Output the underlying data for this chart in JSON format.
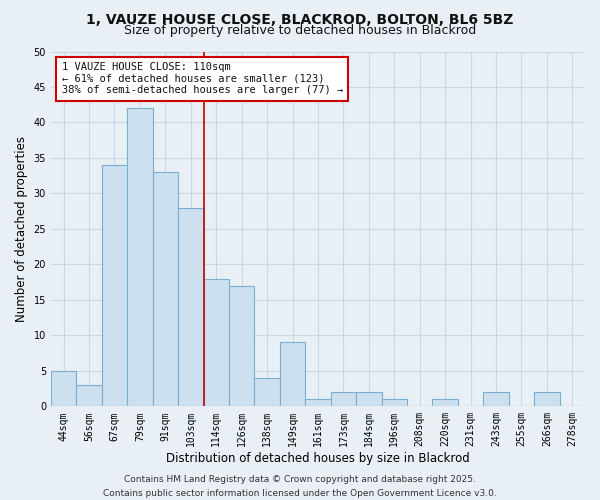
{
  "title_line1": "1, VAUZE HOUSE CLOSE, BLACKROD, BOLTON, BL6 5BZ",
  "title_line2": "Size of property relative to detached houses in Blackrod",
  "xlabel": "Distribution of detached houses by size in Blackrod",
  "ylabel": "Number of detached properties",
  "bar_labels": [
    "44sqm",
    "56sqm",
    "67sqm",
    "79sqm",
    "91sqm",
    "103sqm",
    "114sqm",
    "126sqm",
    "138sqm",
    "149sqm",
    "161sqm",
    "173sqm",
    "184sqm",
    "196sqm",
    "208sqm",
    "220sqm",
    "231sqm",
    "243sqm",
    "255sqm",
    "266sqm",
    "278sqm"
  ],
  "bar_values": [
    5,
    3,
    34,
    42,
    33,
    28,
    18,
    17,
    4,
    9,
    1,
    2,
    2,
    1,
    0,
    1,
    0,
    2,
    0,
    2,
    0
  ],
  "bar_fill": "#cce0f0",
  "bar_edge": "#7aafd4",
  "red_line_after_index": 5,
  "annotation_title": "1 VAUZE HOUSE CLOSE: 110sqm",
  "annotation_line1": "← 61% of detached houses are smaller (123)",
  "annotation_line2": "38% of semi-detached houses are larger (77) →",
  "annotation_box_color": "#ffffff",
  "annotation_box_edge": "#cc0000",
  "ylim": [
    0,
    50
  ],
  "yticks": [
    0,
    5,
    10,
    15,
    20,
    25,
    30,
    35,
    40,
    45,
    50
  ],
  "grid_color": "#c8d8e8",
  "background_color": "#e8eff5",
  "plot_bg": "#e8eff5",
  "red_line_color": "#cc0000",
  "footer_line1": "Contains HM Land Registry data © Crown copyright and database right 2025.",
  "footer_line2": "Contains public sector information licensed under the Open Government Licence v3.0.",
  "title_fontsize": 10,
  "subtitle_fontsize": 9,
  "axis_label_fontsize": 8.5,
  "tick_fontsize": 7,
  "annotation_fontsize": 7.5,
  "footer_fontsize": 6.5
}
